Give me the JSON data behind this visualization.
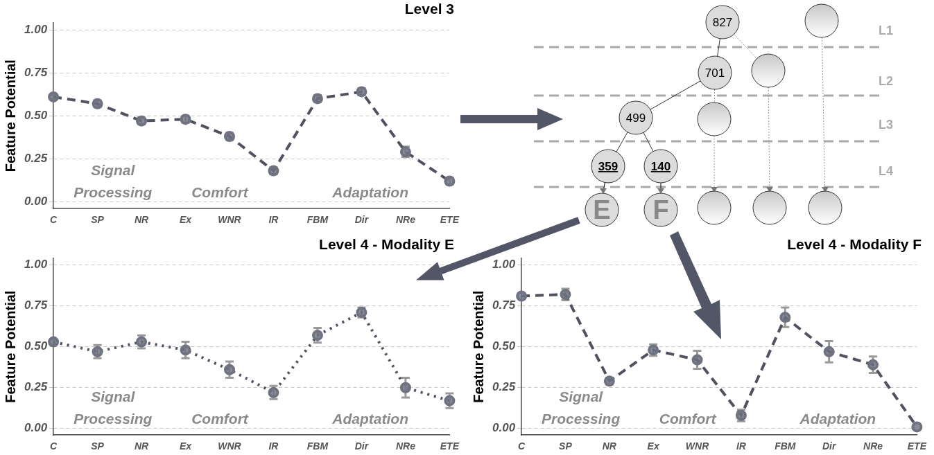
{
  "chart_data": [
    {
      "type": "line",
      "title": "Level 3",
      "ylabel": "Feature Potential",
      "categories": [
        "C",
        "SP",
        "NR",
        "Ex",
        "WNR",
        "IR",
        "FBM",
        "Dir",
        "NRe",
        "ETE"
      ],
      "series": [
        {
          "color": "#50535f",
          "values": [
            0.61,
            0.57,
            0.47,
            0.48,
            0.38,
            0.18,
            0.6,
            0.64,
            0.29,
            0.12
          ],
          "errors": [
            0.01,
            0.02,
            0.02,
            0.02,
            0.02,
            0.02,
            0.02,
            0.02,
            0.03,
            0.02
          ]
        }
      ],
      "ylim": [
        -0.04,
        1.04
      ],
      "yticks": [
        {
          "value": 0,
          "label": "0.00"
        },
        {
          "value": 0.25,
          "label": "0.25"
        },
        {
          "value": 0.5,
          "label": "0.50"
        },
        {
          "value": 0.75,
          "label": "0.75"
        },
        {
          "value": 1,
          "label": "1.00"
        }
      ],
      "grid": "y",
      "marker": "circle",
      "line_style": "dashed",
      "annotations": [
        "Signal Processing",
        "Comfort",
        "Adaptation"
      ]
    },
    {
      "type": "other",
      "annotations": [
        "827",
        "701",
        "499",
        "359",
        "140",
        "E",
        "F",
        "L1",
        "L2",
        "L3",
        "L4"
      ]
    },
    {
      "type": "line",
      "title": "Level 4 - Modality E",
      "ylabel": "Feature Potential",
      "categories": [
        "C",
        "SP",
        "NR",
        "Ex",
        "WNR",
        "IR",
        "FBM",
        "Dir",
        "NRe",
        "ETE"
      ],
      "series": [
        {
          "color": "#50535f",
          "values": [
            0.53,
            0.47,
            0.53,
            0.48,
            0.36,
            0.22,
            0.57,
            0.71,
            0.25,
            0.17
          ],
          "errors": [
            0.015,
            0.04,
            0.04,
            0.05,
            0.05,
            0.04,
            0.045,
            0.03,
            0.06,
            0.045
          ]
        }
      ],
      "ylim": [
        -0.04,
        1.04
      ],
      "yticks": [
        {
          "value": 0,
          "label": "0.00"
        },
        {
          "value": 0.25,
          "label": "0.25"
        },
        {
          "value": 0.5,
          "label": "0.50"
        },
        {
          "value": 0.75,
          "label": "0.75"
        },
        {
          "value": 1,
          "label": "1.00"
        }
      ],
      "grid": "y",
      "marker": "circle",
      "line_style": "dotted",
      "annotations": [
        "Signal Processing",
        "Comfort",
        "Adaptation"
      ]
    },
    {
      "type": "line",
      "title": "Level 4 - Modality F",
      "ylabel": "Feature Potential",
      "categories": [
        "C",
        "SP",
        "NR",
        "Ex",
        "WNR",
        "IR",
        "FBM",
        "Dir",
        "NRe",
        "ETE"
      ],
      "series": [
        {
          "color": "#50535f",
          "values": [
            0.81,
            0.82,
            0.29,
            0.48,
            0.42,
            0.08,
            0.68,
            0.47,
            0.39,
            0.01
          ],
          "errors": [
            null,
            0.035,
            0.02,
            0.035,
            0.055,
            0.035,
            0.06,
            0.065,
            0.05,
            null
          ]
        }
      ],
      "ylim": [
        -0.04,
        1.04
      ],
      "yticks": [
        {
          "value": 0,
          "label": "0.00"
        },
        {
          "value": 0.25,
          "label": "0.25"
        },
        {
          "value": 0.5,
          "label": "0.50"
        },
        {
          "value": 0.75,
          "label": "0.75"
        },
        {
          "value": 1,
          "label": "1.00"
        }
      ],
      "grid": "y",
      "marker": "circle",
      "line_style": "dashed",
      "annotations": [
        "Signal Processing",
        "Comfort",
        "Adaptation"
      ]
    }
  ]
}
